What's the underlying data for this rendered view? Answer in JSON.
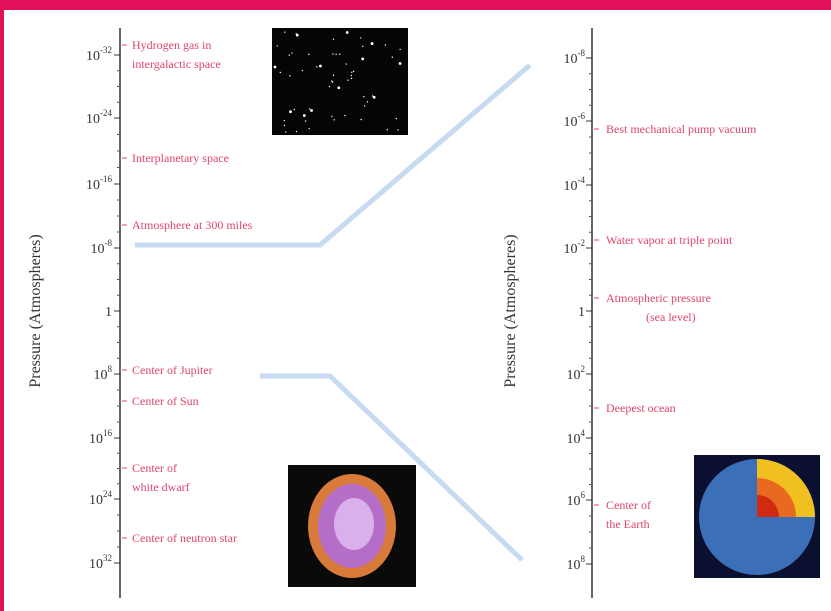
{
  "left_axis": {
    "title": "Pressure (Atmospheres)",
    "ticks": [
      {
        "base": "10",
        "exp": "-32"
      },
      {
        "base": "10",
        "exp": "-24"
      },
      {
        "base": "10",
        "exp": "-16"
      },
      {
        "base": "10",
        "exp": "-8"
      },
      {
        "base": "1"
      },
      {
        "base": "10",
        "exp": "8"
      },
      {
        "base": "10",
        "exp": "16"
      },
      {
        "base": "10",
        "exp": "24"
      },
      {
        "base": "10",
        "exp": "32"
      }
    ],
    "notes": [
      {
        "lines": [
          "Hydrogen gas in",
          "intergalactic space"
        ]
      },
      {
        "lines": [
          "Interplanetary space"
        ]
      },
      {
        "lines": [
          "Atmosphere at 300 miles"
        ]
      },
      {
        "lines": [
          "Center of Jupiter"
        ]
      },
      {
        "lines": [
          "Center of Sun"
        ]
      },
      {
        "lines": [
          "Center of",
          "white dwarf"
        ]
      },
      {
        "lines": [
          "Center of neutron star"
        ]
      }
    ]
  },
  "right_axis": {
    "title": "Pressure (Atmospheres)",
    "ticks": [
      {
        "base": "10",
        "exp": "-8"
      },
      {
        "base": "10",
        "exp": "-6"
      },
      {
        "base": "10",
        "exp": "-4"
      },
      {
        "base": "10",
        "exp": "-2"
      },
      {
        "base": "1"
      },
      {
        "base": "10",
        "exp": "2"
      },
      {
        "base": "10",
        "exp": "4"
      },
      {
        "base": "10",
        "exp": "6"
      },
      {
        "base": "10",
        "exp": "8"
      }
    ],
    "notes": [
      {
        "lines": [
          "Best mechanical pump vacuum"
        ]
      },
      {
        "lines": [
          "Water vapor at triple point"
        ]
      },
      {
        "lines": [
          "Atmospheric pressure",
          "(sea level)"
        ]
      },
      {
        "lines": [
          "Deepest ocean"
        ]
      },
      {
        "lines": [
          "Center of",
          "the Earth"
        ]
      }
    ]
  }
}
